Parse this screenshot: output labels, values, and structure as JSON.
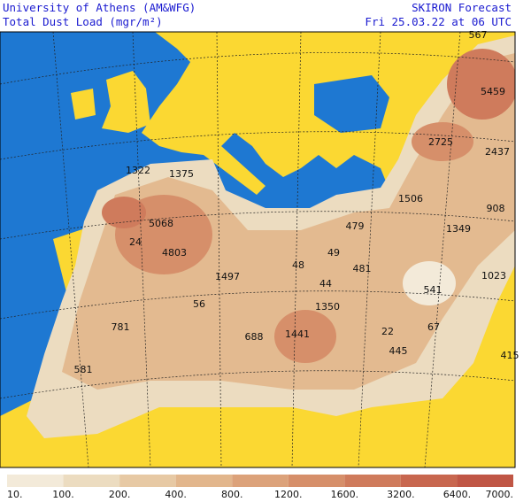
{
  "header": {
    "left": [
      "University of Athens (AM&WFG)",
      "Total Dust Load (mgr/m²)"
    ],
    "right": [
      "SKIRON Forecast",
      "Fri 25.03.22 at 06 UTC"
    ]
  },
  "map": {
    "labels": [
      567,
      5459,
      2725,
      2437,
      1322,
      1375,
      1506,
      908,
      5068,
      479,
      1349,
      24,
      4803,
      49,
      48,
      481,
      1023,
      1497,
      44,
      541,
      56,
      1350,
      781,
      688,
      1441,
      22,
      67,
      445,
      415,
      581
    ]
  },
  "colorbar": {
    "labels": [
      "10.",
      "100.",
      "200.",
      "400.",
      "800.",
      "1200.",
      "1600.",
      "3200.",
      "6400.",
      "7000."
    ],
    "colors": [
      "#f3ead9",
      "#ecdcc0",
      "#e7c9a4",
      "#e2b68c",
      "#dca27a",
      "#d68f6a",
      "#cf7b5c",
      "#c8674f",
      "#c05645"
    ]
  }
}
